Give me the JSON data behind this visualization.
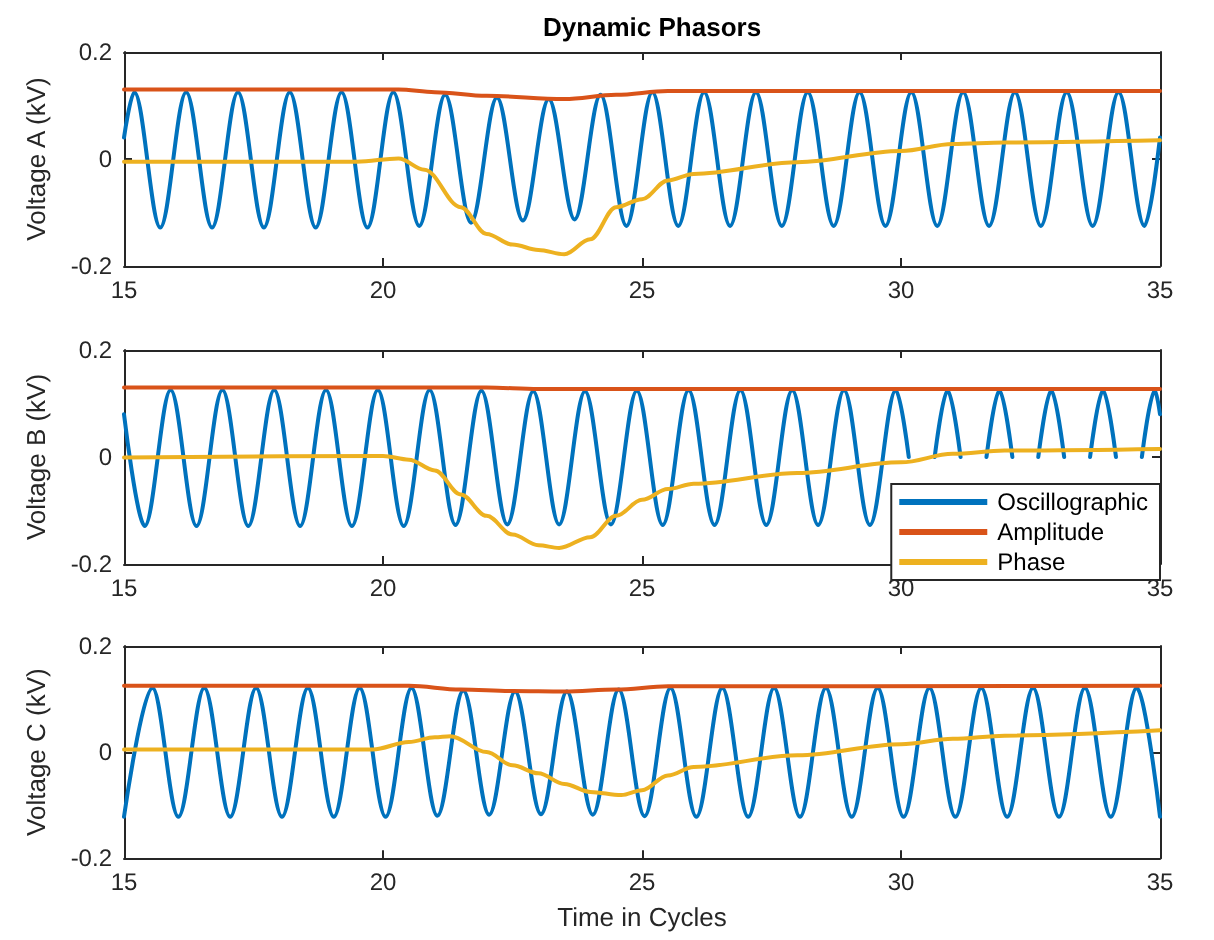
{
  "chart_data": [
    {
      "type": "line",
      "title": "Dynamic Phasors",
      "ylabel": "Voltage A (kV)",
      "xlim": [
        15,
        35
      ],
      "xticks": [
        15,
        20,
        25,
        30,
        35
      ],
      "ylim": [
        -0.2,
        0.2
      ],
      "yticks": [
        -0.2,
        0,
        0.2
      ],
      "grid": false,
      "line_style": "solid",
      "marker": "none",
      "series": [
        {
          "color": "#0072bd",
          "x": [
            15,
            15.2,
            15.7,
            16.2,
            16.7,
            17.2,
            17.7,
            18.2,
            18.7,
            19.2,
            19.7,
            20.2,
            20.7,
            21.2,
            21.7,
            22.2,
            22.7,
            23.2,
            23.7,
            24.2,
            24.7,
            25.2,
            25.7,
            26.2,
            26.7,
            27.2,
            27.7,
            28.2,
            28.7,
            29.2,
            29.7,
            30.2,
            30.7,
            31.2,
            31.7,
            32.2,
            32.7,
            33.2,
            33.7,
            34.2,
            34.7,
            35
          ],
          "values": [
            0.04,
            0.125,
            -0.128,
            0.125,
            -0.128,
            0.125,
            -0.128,
            0.125,
            -0.128,
            0.125,
            -0.128,
            0.125,
            -0.125,
            0.12,
            -0.119,
            0.115,
            -0.115,
            0.112,
            -0.113,
            0.12,
            -0.125,
            0.125,
            -0.125,
            0.125,
            -0.125,
            0.125,
            -0.125,
            0.125,
            -0.125,
            0.125,
            -0.125,
            0.125,
            -0.125,
            0.125,
            -0.125,
            0.125,
            -0.125,
            0.125,
            -0.125,
            0.125,
            -0.125,
            0.04
          ]
        },
        {
          "color": "#d95319",
          "x": [
            15,
            20.3,
            21,
            22,
            23.5,
            24.5,
            25.5,
            35
          ],
          "values": [
            0.13,
            0.13,
            0.125,
            0.118,
            0.112,
            0.12,
            0.127,
            0.127
          ]
        },
        {
          "color": "#edb120",
          "x": [
            15,
            19.5,
            20.3,
            20.8,
            21.5,
            22,
            22.5,
            23,
            23.5,
            24,
            24.5,
            25,
            25.5,
            26,
            28,
            30,
            31,
            32,
            35
          ],
          "values": [
            -0.005,
            -0.005,
            0.001,
            -0.02,
            -0.09,
            -0.14,
            -0.16,
            -0.17,
            -0.178,
            -0.15,
            -0.09,
            -0.075,
            -0.04,
            -0.028,
            -0.006,
            0.015,
            0.028,
            0.031,
            0.035
          ]
        }
      ]
    },
    {
      "type": "line",
      "ylabel": "Voltage B (kV)",
      "xlim": [
        15,
        35
      ],
      "xticks": [
        15,
        20,
        25,
        30,
        35
      ],
      "ylim": [
        -0.2,
        0.2
      ],
      "yticks": [
        -0.2,
        0,
        0.2
      ],
      "grid": false,
      "line_style": "solid",
      "marker": "none",
      "legend": "bottom right",
      "series": [
        {
          "name": "Oscillographic",
          "color": "#0072bd",
          "x": [
            15,
            15.4,
            15.9,
            16.4,
            16.9,
            17.4,
            17.9,
            18.4,
            18.9,
            19.4,
            19.9,
            20.4,
            20.9,
            21.4,
            21.9,
            22.4,
            22.9,
            23.4,
            23.9,
            24.4,
            24.9,
            25.4,
            25.9,
            26.4,
            26.9,
            27.4,
            27.9,
            28.4,
            28.9,
            29.4,
            29.9,
            30.15,
            30.4,
            30.65,
            30.9,
            31.15,
            31.4,
            31.65,
            31.9,
            32.15,
            32.4,
            32.65,
            32.9,
            33.15,
            33.4,
            33.65,
            33.9,
            34.15,
            34.4,
            34.65,
            34.9,
            35
          ],
          "values": [
            0.08,
            -0.129,
            0.125,
            -0.129,
            0.125,
            -0.129,
            0.125,
            -0.129,
            0.125,
            -0.129,
            0.125,
            -0.129,
            0.125,
            -0.127,
            0.124,
            -0.126,
            0.123,
            -0.126,
            0.123,
            -0.126,
            0.124,
            -0.127,
            0.125,
            -0.127,
            0.125,
            -0.127,
            0.125,
            -0.127,
            0.125,
            -0.127,
            0.125,
            0,
            null,
            0,
            0.125,
            0,
            null,
            0,
            0.125,
            0,
            null,
            0,
            0.125,
            0,
            null,
            0,
            0.125,
            0,
            null,
            0,
            0.125,
            0.08
          ]
        },
        {
          "name": "Amplitude",
          "color": "#d95319",
          "x": [
            15,
            22,
            23,
            35
          ],
          "values": [
            0.13,
            0.13,
            0.127,
            0.127
          ]
        },
        {
          "name": "Phase",
          "color": "#edb120",
          "x": [
            15,
            20,
            20.5,
            21,
            21.5,
            22,
            22.5,
            23,
            23.4,
            24,
            24.5,
            25,
            25.5,
            26,
            28,
            30,
            31,
            32,
            35
          ],
          "values": [
            -0.001,
            0.002,
            -0.005,
            -0.025,
            -0.07,
            -0.11,
            -0.145,
            -0.165,
            -0.17,
            -0.15,
            -0.11,
            -0.08,
            -0.06,
            -0.05,
            -0.03,
            -0.01,
            0.006,
            0.012,
            0.015
          ]
        }
      ]
    },
    {
      "type": "line",
      "ylabel": "Voltage C (kV)",
      "xlabel": "Time in Cycles",
      "xlim": [
        15,
        35
      ],
      "xticks": [
        15,
        20,
        25,
        30,
        35
      ],
      "ylim": [
        -0.2,
        0.2
      ],
      "yticks": [
        -0.2,
        0,
        0.2
      ],
      "grid": false,
      "line_style": "solid",
      "marker": "none",
      "series": [
        {
          "color": "#0072bd",
          "x": [
            15,
            15.55,
            16.05,
            16.55,
            17.05,
            17.55,
            18.05,
            18.55,
            19.05,
            19.55,
            20.05,
            20.55,
            21.05,
            21.55,
            22.05,
            22.55,
            23.05,
            23.55,
            24.05,
            24.55,
            25.05,
            25.55,
            26.05,
            26.55,
            27.05,
            27.55,
            28.05,
            28.55,
            29.05,
            29.55,
            30.05,
            30.55,
            31.05,
            31.55,
            32.05,
            32.55,
            33.05,
            33.55,
            34.05,
            34.55,
            35
          ],
          "values": [
            -0.122,
            0.121,
            -0.122,
            0.121,
            -0.122,
            0.121,
            -0.122,
            0.121,
            -0.122,
            0.121,
            -0.122,
            0.121,
            -0.12,
            0.116,
            -0.118,
            0.114,
            -0.117,
            0.114,
            -0.118,
            0.118,
            -0.121,
            0.121,
            -0.122,
            0.121,
            -0.122,
            0.121,
            -0.122,
            0.121,
            -0.122,
            0.121,
            -0.122,
            0.121,
            -0.122,
            0.121,
            -0.122,
            0.121,
            -0.122,
            0.121,
            -0.122,
            0.121,
            -0.122
          ]
        },
        {
          "color": "#d95319",
          "x": [
            15,
            20.5,
            21.5,
            22.5,
            23.5,
            24.5,
            25.5,
            35
          ],
          "values": [
            0.125,
            0.125,
            0.118,
            0.115,
            0.114,
            0.118,
            0.124,
            0.125
          ]
        },
        {
          "color": "#edb120",
          "x": [
            15,
            19.8,
            20.5,
            21,
            21.3,
            22,
            22.5,
            23,
            23.5,
            24,
            24.6,
            25,
            25.5,
            26,
            28,
            30,
            31,
            32,
            35
          ],
          "values": [
            0.005,
            0.005,
            0.019,
            0.028,
            0.03,
            0,
            -0.025,
            -0.04,
            -0.06,
            -0.075,
            -0.081,
            -0.072,
            -0.044,
            -0.028,
            -0.006,
            0.015,
            0.025,
            0.031,
            0.041
          ]
        }
      ]
    }
  ]
}
